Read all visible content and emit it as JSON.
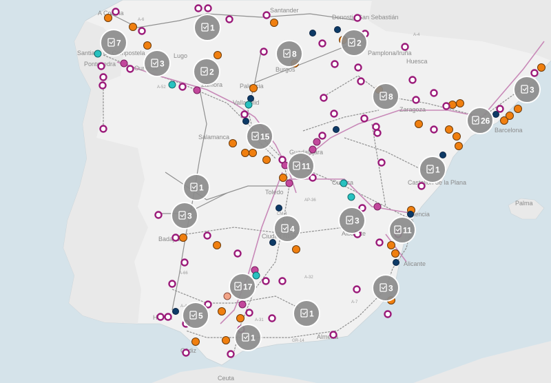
{
  "colors": {
    "sea": "#d5e3ea",
    "land": "#f1f1f1",
    "cluster": "#8c8c8c",
    "ring_marker": "#9b1b7a",
    "orange_marker": "#f07f0f",
    "navy_marker": "#0d3a66",
    "teal_marker": "#28c2c0",
    "magenta_marker": "#c2489c",
    "salmon_marker": "#f2a488",
    "rail_line": "#c889b8"
  },
  "cluster_icon": "document-stack-icon",
  "clusters": [
    {
      "count": "7"
    },
    {
      "count": "3"
    },
    {
      "count": "1"
    },
    {
      "count": "2"
    },
    {
      "count": "8"
    },
    {
      "count": "2"
    },
    {
      "count": "8"
    },
    {
      "count": "3"
    },
    {
      "count": "26"
    },
    {
      "count": "15"
    },
    {
      "count": "11"
    },
    {
      "count": "1"
    },
    {
      "count": "1"
    },
    {
      "count": "3"
    },
    {
      "count": "4"
    },
    {
      "count": "3"
    },
    {
      "count": "11"
    },
    {
      "count": "17"
    },
    {
      "count": "3"
    },
    {
      "count": "1"
    },
    {
      "count": "5"
    },
    {
      "count": "1"
    }
  ],
  "places": [
    "A Coruña",
    "Santiago de Compostela",
    "Pontevedra",
    "Ourense",
    "Lugo",
    "Santander",
    "Donostia San Sebastián",
    "Pamplona/Iruña",
    "Palencia",
    "Valladolid",
    "Zamora",
    "Salamanca",
    "Burgos",
    "Guadalajara",
    "Toledo",
    "Cuenca",
    "Ciudad Real",
    "Albacete",
    "Valencia",
    "Castellón de la Plana",
    "Alicante",
    "Badajoz",
    "Huelva",
    "Cádiz",
    "Almería",
    "Huesca",
    "Zaragoza",
    "Barcelona",
    "Palma",
    "Ceuta"
  ],
  "roads": [
    "A-6",
    "A-52",
    "AP-36",
    "A-32",
    "A-7",
    "GR-14",
    "A-66",
    "A-31",
    "CM-4",
    "A-49",
    "A-4"
  ]
}
